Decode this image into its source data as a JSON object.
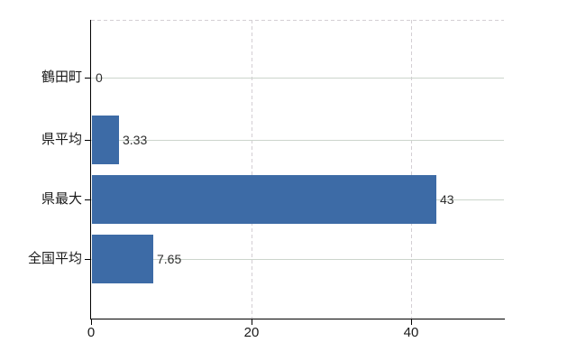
{
  "chart_data": {
    "type": "bar",
    "orientation": "horizontal",
    "title": "",
    "categories": [
      "鶴田町",
      "県平均",
      "県最大",
      "全国平均"
    ],
    "values": [
      0,
      3.33,
      43,
      7.65
    ],
    "value_labels": [
      "0",
      "3.33",
      "43",
      "7.65"
    ],
    "x_ticks": [
      0,
      20,
      40
    ],
    "x_tick_labels": [
      "0",
      "20",
      "40"
    ],
    "xlim": [
      0,
      51.7
    ],
    "xlabel": "",
    "ylabel": "",
    "legend": null,
    "grid": {
      "horizontal_category_lines": "solid",
      "vertical_tick_lines": "dashed",
      "plot_top_border": "dashed"
    },
    "colors": {
      "bar": "#3D6BA6",
      "axis": "#000000",
      "horizontal_grid": "#CCD5CC",
      "vertical_grid": "#D3CED3",
      "category_text": "#1A1A1A",
      "value_text": "#2E2E2E",
      "tick_text": "#1A1A1A",
      "background": "#FFFFFF"
    }
  }
}
